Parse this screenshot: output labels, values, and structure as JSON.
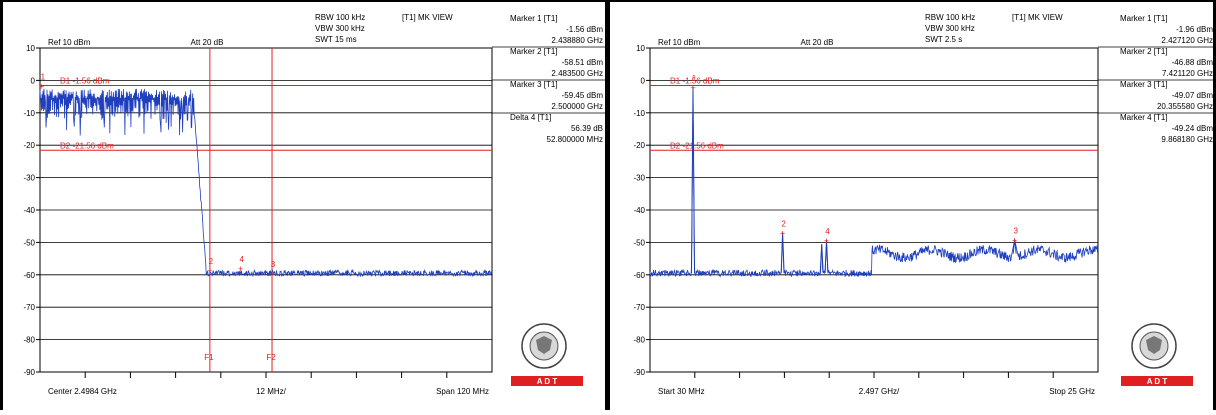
{
  "chart_data": [
    {
      "type": "line",
      "header": {
        "ref": "Ref 10 dBm",
        "att": "Att  20 dB",
        "rbw": "RBW 100 kHz",
        "vbw": "VBW 300 kHz",
        "swt": "SWT 15 ms",
        "mode": "[T1] MK VIEW"
      },
      "y_ticks": [
        "10",
        "0",
        "-10",
        "-20",
        "-30",
        "-40",
        "-50",
        "-60",
        "-70",
        "-80",
        "-90"
      ],
      "ylim": [
        -90,
        10
      ],
      "x_start_label": "Center 2.4984 GHz",
      "x_div_label": "12 MHz/",
      "x_end_label": "Span 120 MHz",
      "x_range_ghz": [
        2.4384,
        2.5584
      ],
      "display_lines": [
        {
          "name": "D1",
          "label": "D1 -1.56 dBm",
          "value": -1.56
        },
        {
          "name": "D2",
          "label": "D2 -21.56 dBm",
          "value": -21.56
        }
      ],
      "frequency_lines": [
        {
          "name": "F1",
          "label": "F1",
          "value_ghz": 2.4835
        },
        {
          "name": "F2",
          "label": "F2",
          "value_ghz": 2.5
        }
      ],
      "trace": {
        "type": "in-band-noise-then-floor",
        "band_start_ghz": 2.4384,
        "band_end_ghz": 2.4794,
        "band_top_dbm": -2.5,
        "band_bottom_dbm": -12,
        "edge_ghz": 2.4825,
        "floor_dbm": -59.5,
        "floor_jitter": 0.9
      },
      "marker_points": [
        {
          "id": "1",
          "x_ghz": 2.43888,
          "y_dbm": -1.56
        },
        {
          "id": "2",
          "x_ghz": 2.4835,
          "y_dbm": -58.51
        },
        {
          "id": "3",
          "x_ghz": 2.5,
          "y_dbm": -59.45
        },
        {
          "id": "4",
          "x_ghz": 2.49168,
          "y_dbm": -57.95
        }
      ],
      "marker_table": [
        {
          "title": "Marker 1 [T1]",
          "level": "-1.56 dBm",
          "freq": "2.438880 GHz"
        },
        {
          "title": "Marker 2 [T1]",
          "level": "-58.51 dBm",
          "freq": "2.483500 GHz"
        },
        {
          "title": "Marker 3 [T1]",
          "level": "-59.45 dBm",
          "freq": "2.500000 GHz"
        },
        {
          "title": "Delta 4 [T1]",
          "level": "56.39 dB",
          "freq": "52.800000 MHz"
        }
      ],
      "logo_text": "A  D  T"
    },
    {
      "type": "line",
      "header": {
        "ref": "Ref 10 dBm",
        "att": "Att  20 dB",
        "rbw": "RBW 100 kHz",
        "vbw": "VBW 300 kHz",
        "swt": "SWT 2.5 s",
        "mode": "[T1] MK VIEW"
      },
      "y_ticks": [
        "10",
        "0",
        "-10",
        "-20",
        "-30",
        "-40",
        "-50",
        "-60",
        "-70",
        "-80",
        "-90"
      ],
      "ylim": [
        -90,
        10
      ],
      "x_start_label": "Start 30 MHz",
      "x_div_label": "2.497 GHz/",
      "x_end_label": "Stop 25 GHz",
      "x_range_ghz": [
        0.03,
        25.0
      ],
      "display_lines": [
        {
          "name": "D1",
          "label": "D1 -1.56 dBm",
          "value": -1.56
        },
        {
          "name": "D2",
          "label": "D2 -21.56 dBm",
          "value": -21.56
        }
      ],
      "frequency_lines": [],
      "trace": {
        "type": "wideband-with-spurs",
        "floor_dbm": -59.5,
        "floor_jitter": 1.0,
        "step_ghz": 12.4,
        "raised_floor_dbm": -53.5,
        "raised_jitter": 1.6,
        "spurs": [
          {
            "x_ghz": 2.42712,
            "y_dbm": -1.96,
            "width_ghz": 0.08
          },
          {
            "x_ghz": 7.42112,
            "y_dbm": -46.88,
            "width_ghz": 0.07
          },
          {
            "x_ghz": 9.86818,
            "y_dbm": -49.24,
            "width_ghz": 0.07
          },
          {
            "x_ghz": 9.6,
            "y_dbm": -50.5,
            "width_ghz": 0.06
          },
          {
            "x_ghz": 20.35558,
            "y_dbm": -49.07,
            "width_ghz": 0.2
          }
        ]
      },
      "marker_points": [
        {
          "id": "1",
          "x_ghz": 2.42712,
          "y_dbm": -1.96
        },
        {
          "id": "2",
          "x_ghz": 7.42112,
          "y_dbm": -46.88
        },
        {
          "id": "3",
          "x_ghz": 20.35558,
          "y_dbm": -49.07
        },
        {
          "id": "4",
          "x_ghz": 9.86818,
          "y_dbm": -49.24
        }
      ],
      "marker_table": [
        {
          "title": "Marker 1 [T1]",
          "level": "-1.96 dBm",
          "freq": "2.427120 GHz"
        },
        {
          "title": "Marker 2 [T1]",
          "level": "-46.88 dBm",
          "freq": "7.421120 GHz"
        },
        {
          "title": "Marker 3 [T1]",
          "level": "-49.07 dBm",
          "freq": "20.355580 GHz"
        },
        {
          "title": "Marker 4 [T1]",
          "level": "-49.24 dBm",
          "freq": "9.868180 GHz"
        }
      ],
      "logo_text": "A  D  T"
    }
  ]
}
